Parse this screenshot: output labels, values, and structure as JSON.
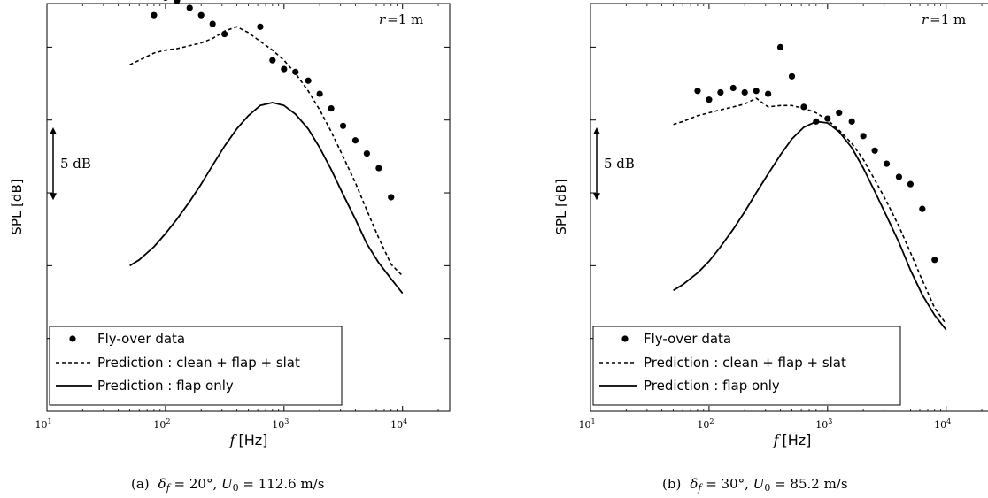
{
  "chart_data": [
    {
      "type": "line",
      "caption_prefix": "(a)",
      "caption_math": "δf = 20°, U0 = 112.6 m/s",
      "caption_parts": {
        "delta_sub": "f",
        "angle": " = 20°, ",
        "u": "U",
        "u_sub": "0",
        "speed": " = 112.6 m/s"
      },
      "annotation": "r =1 m",
      "annotation_parts": {
        "r": "r",
        "eq": "=1 m"
      },
      "scale_bar_label": "5 dB",
      "xlabel_italic": "f",
      "xlabel_unit": "[Hz]",
      "ylabel": "SPL [dB]",
      "xscale": "log",
      "xlim": [
        10,
        25000
      ],
      "ylim": [
        0,
        28
      ],
      "x_ticks": [
        {
          "value": 10,
          "base": "10",
          "exp": "1"
        },
        {
          "value": 100,
          "base": "10",
          "exp": "2"
        },
        {
          "value": 1000,
          "base": "10",
          "exp": "3"
        },
        {
          "value": 10000,
          "base": "10",
          "exp": "4"
        }
      ],
      "y_ticks": [
        0,
        5,
        10,
        15,
        20,
        25
      ],
      "scale_bar": [
        14.5,
        19.5
      ],
      "legend": {
        "placement": "lower-left",
        "entries": [
          {
            "label": "Fly-over data",
            "style": "marker"
          },
          {
            "label": "Prediction : clean + flap + slat",
            "style": "dashed"
          },
          {
            "label": "Prediction : flap only",
            "style": "solid"
          }
        ]
      },
      "series": [
        {
          "name": "Fly-over data",
          "style": "marker",
          "x": [
            80,
            100,
            125,
            160,
            200,
            250,
            315,
            400,
            630,
            800,
            1000,
            1250,
            1600,
            2000,
            2500,
            3150,
            4000,
            5000,
            6300,
            8000
          ],
          "y": [
            27.2,
            28.4,
            28.2,
            27.7,
            27.2,
            26.6,
            25.9,
            28.8,
            26.4,
            24.1,
            23.5,
            23.3,
            22.7,
            21.8,
            20.8,
            19.6,
            18.6,
            17.7,
            16.7,
            14.7
          ]
        },
        {
          "name": "Prediction : clean + flap + slat",
          "style": "dashed",
          "x": [
            50,
            60,
            80,
            100,
            125,
            160,
            200,
            250,
            315,
            400,
            500,
            630,
            800,
            1000,
            1250,
            1600,
            2000,
            2500,
            3150,
            4000,
            5000,
            6300,
            8000,
            10000
          ],
          "y": [
            23.8,
            24.1,
            24.6,
            24.8,
            24.9,
            25.1,
            25.3,
            25.6,
            26.1,
            26.4,
            26.0,
            25.4,
            24.8,
            24.1,
            23.2,
            22.0,
            20.7,
            19.2,
            17.5,
            15.7,
            13.8,
            11.9,
            10.1,
            9.3
          ]
        },
        {
          "name": "Prediction : flap only",
          "style": "solid",
          "x": [
            50,
            60,
            80,
            100,
            125,
            160,
            200,
            250,
            315,
            400,
            500,
            630,
            800,
            1000,
            1250,
            1600,
            2000,
            2500,
            3150,
            4000,
            5000,
            6300,
            8000,
            10000
          ],
          "y": [
            10.0,
            10.4,
            11.3,
            12.2,
            13.2,
            14.4,
            15.6,
            16.9,
            18.2,
            19.4,
            20.3,
            21.0,
            21.2,
            21.0,
            20.4,
            19.4,
            18.1,
            16.6,
            14.9,
            13.2,
            11.5,
            10.2,
            9.1,
            8.1
          ]
        }
      ]
    },
    {
      "type": "line",
      "caption_prefix": "(b)",
      "caption_math": "δf = 30°, U0 = 85.2 m/s",
      "caption_parts": {
        "delta_sub": "f",
        "angle": " = 30°, ",
        "u": "U",
        "u_sub": "0",
        "speed": " = 85.2 m/s"
      },
      "annotation": "r =1 m",
      "annotation_parts": {
        "r": "r",
        "eq": "=1 m"
      },
      "scale_bar_label": "5 dB",
      "xlabel_italic": "f",
      "xlabel_unit": "[Hz]",
      "ylabel": "SPL [dB]",
      "xscale": "log",
      "xlim": [
        10,
        25000
      ],
      "ylim": [
        0,
        28
      ],
      "x_ticks": [
        {
          "value": 10,
          "base": "10",
          "exp": "1"
        },
        {
          "value": 100,
          "base": "10",
          "exp": "2"
        },
        {
          "value": 1000,
          "base": "10",
          "exp": "3"
        },
        {
          "value": 10000,
          "base": "10",
          "exp": "4"
        }
      ],
      "y_ticks": [
        0,
        5,
        10,
        15,
        20,
        25
      ],
      "scale_bar": [
        14.5,
        19.5
      ],
      "legend": {
        "placement": "lower-left",
        "entries": [
          {
            "label": "Fly-over data",
            "style": "marker"
          },
          {
            "label": "Prediction : clean + flap + slat",
            "style": "dashed"
          },
          {
            "label": "Prediction : flap only",
            "style": "solid"
          }
        ]
      },
      "series": [
        {
          "name": "Fly-over data",
          "style": "marker",
          "x": [
            80,
            100,
            125,
            160,
            200,
            250,
            315,
            400,
            500,
            630,
            800,
            1000,
            1250,
            1600,
            2000,
            2500,
            3150,
            4000,
            5000,
            6300,
            8000
          ],
          "y": [
            22.0,
            21.4,
            21.9,
            22.2,
            21.9,
            22.0,
            21.8,
            25.0,
            23.0,
            20.9,
            19.9,
            20.1,
            20.5,
            19.9,
            18.9,
            17.9,
            17.0,
            16.1,
            15.6,
            13.9,
            10.4
          ]
        },
        {
          "name": "Prediction : clean + flap + slat",
          "style": "dashed",
          "x": [
            50,
            60,
            80,
            100,
            125,
            160,
            200,
            250,
            315,
            400,
            500,
            630,
            800,
            1000,
            1250,
            1600,
            2000,
            2500,
            3150,
            4000,
            5000,
            6300,
            8000,
            10000
          ],
          "y": [
            19.7,
            19.9,
            20.3,
            20.5,
            20.7,
            20.9,
            21.1,
            21.5,
            20.9,
            21.0,
            21.0,
            20.8,
            20.5,
            20.0,
            19.3,
            18.4,
            17.3,
            15.9,
            14.4,
            12.7,
            10.9,
            9.0,
            7.1,
            6.0
          ]
        },
        {
          "name": "Prediction : flap only",
          "style": "solid",
          "x": [
            50,
            60,
            80,
            100,
            125,
            160,
            200,
            250,
            315,
            400,
            500,
            630,
            800,
            1000,
            1250,
            1600,
            2000,
            2500,
            3150,
            4000,
            5000,
            6300,
            8000,
            10000
          ],
          "y": [
            8.3,
            8.7,
            9.5,
            10.3,
            11.3,
            12.5,
            13.7,
            15.0,
            16.3,
            17.6,
            18.7,
            19.5,
            19.9,
            19.8,
            19.2,
            18.1,
            16.7,
            15.1,
            13.4,
            11.6,
            9.7,
            8.0,
            6.6,
            5.6
          ]
        }
      ]
    }
  ]
}
